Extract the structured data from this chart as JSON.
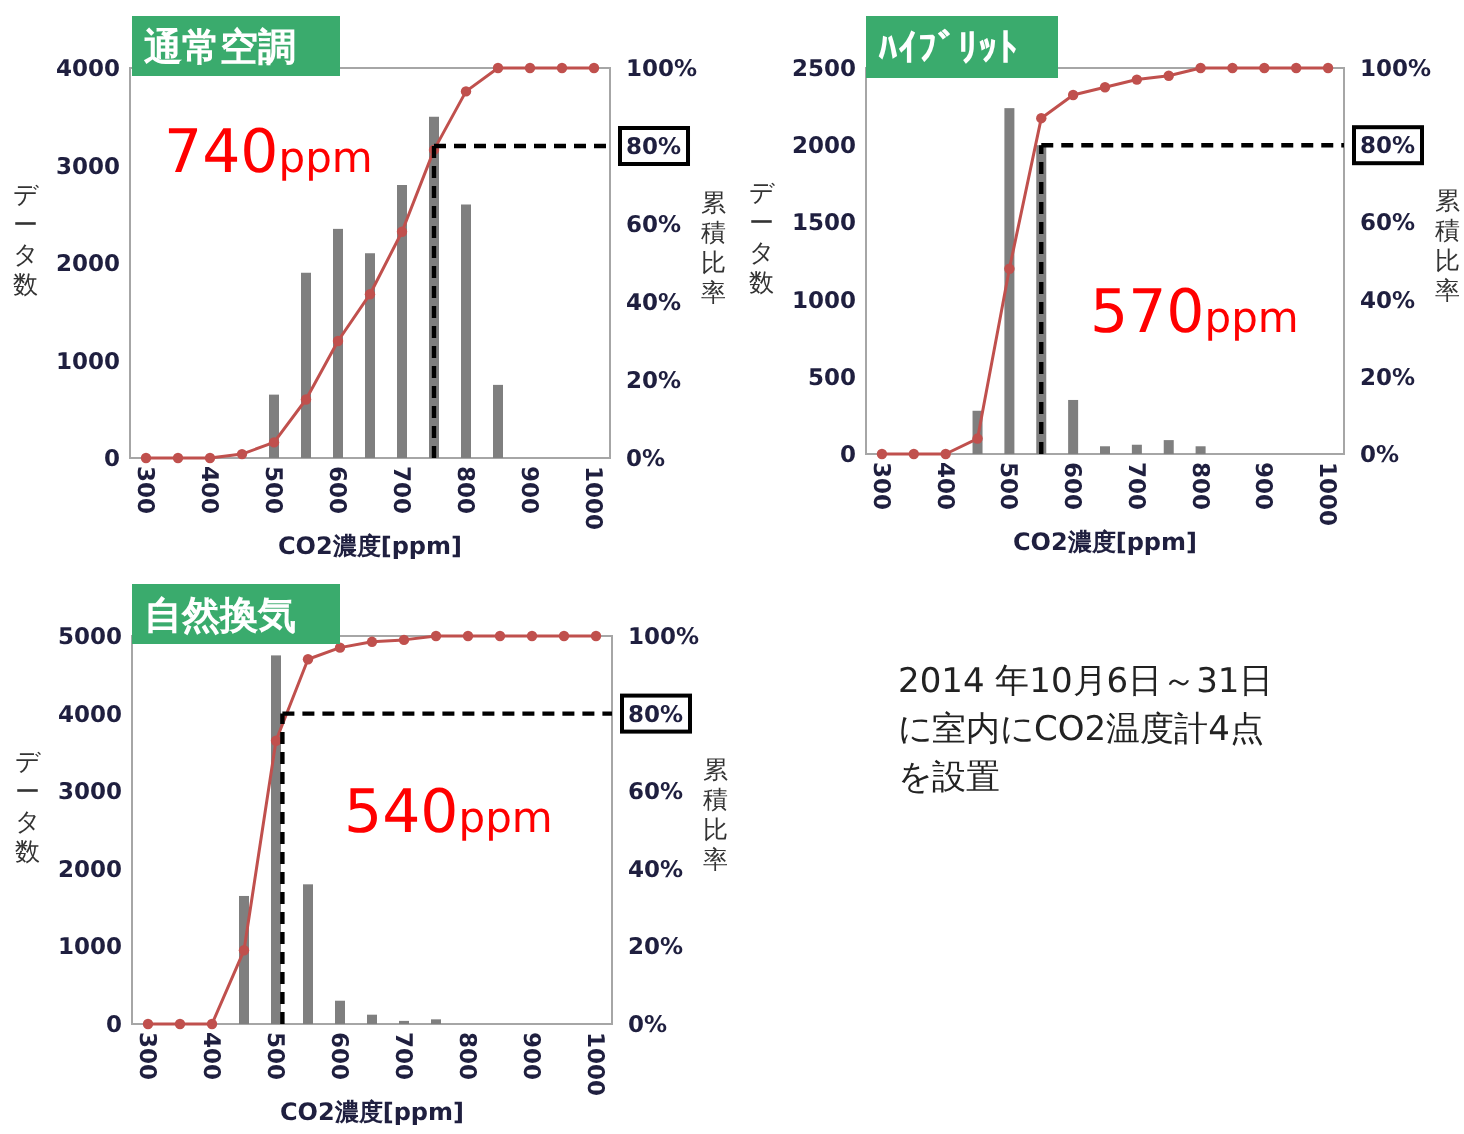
{
  "chart_data": [
    {
      "type": "bar",
      "title": "通常空調",
      "xlabel": "CO2濃度[ppm]",
      "ylabel": "データ数",
      "y2label": "累積比率",
      "xlim": [
        275,
        1025
      ],
      "xticks": [
        300,
        400,
        500,
        600,
        700,
        800,
        900,
        1000
      ],
      "ylim": [
        0,
        4000
      ],
      "yticks": [
        0,
        1000,
        2000,
        3000,
        4000
      ],
      "y2lim": [
        0,
        100
      ],
      "y2ticks": [
        {
          "value": 0,
          "label": "0%"
        },
        {
          "value": 20,
          "label": "20%"
        },
        {
          "value": 40,
          "label": "40%"
        },
        {
          "value": 60,
          "label": "60%"
        },
        {
          "value": 80,
          "label": "80%"
        },
        {
          "value": 100,
          "label": "100%"
        }
      ],
      "grid": false,
      "marker": "circle",
      "series": [
        {
          "type": "bar",
          "color": "#7f7f7f",
          "x": [
            500,
            550,
            600,
            650,
            700,
            750,
            800,
            850
          ],
          "values": [
            650,
            1900,
            2350,
            2100,
            2800,
            3500,
            2600,
            750
          ]
        },
        {
          "type": "line",
          "axis": "y2",
          "color": "#c0504d",
          "x": [
            300,
            350,
            400,
            450,
            500,
            550,
            600,
            650,
            700,
            750,
            800,
            850,
            900,
            950,
            1000
          ],
          "values": [
            0,
            0,
            0,
            1,
            4,
            15,
            30,
            42,
            58,
            79,
            94,
            100,
            100,
            100,
            100
          ]
        }
      ],
      "ref_lines": [
        {
          "axis": "x",
          "value": 750,
          "color": "#000000",
          "line_style": "dashed"
        },
        {
          "axis": "y2",
          "value": 80,
          "color": "#000000",
          "line_style": "dashed"
        }
      ],
      "annotations": [
        "740ppm"
      ]
    },
    {
      "type": "bar",
      "title": "ﾊｲﾌﾞﾘｯﾄ",
      "xlabel": "CO2濃度[ppm]",
      "ylabel": "データ数",
      "y2label": "累積比率",
      "xlim": [
        275,
        1025
      ],
      "xticks": [
        300,
        400,
        500,
        600,
        700,
        800,
        900,
        1000
      ],
      "ylim": [
        0,
        2500
      ],
      "yticks": [
        0,
        500,
        1000,
        1500,
        2000,
        2500
      ],
      "y2lim": [
        0,
        100
      ],
      "y2ticks": [
        {
          "value": 0,
          "label": "0%"
        },
        {
          "value": 20,
          "label": "20%"
        },
        {
          "value": 40,
          "label": "40%"
        },
        {
          "value": 60,
          "label": "60%"
        },
        {
          "value": 80,
          "label": "80%"
        },
        {
          "value": 100,
          "label": "100%"
        }
      ],
      "grid": false,
      "marker": "circle",
      "series": [
        {
          "type": "bar",
          "color": "#7f7f7f",
          "x": [
            450,
            500,
            550,
            600,
            650,
            700,
            750,
            800
          ],
          "values": [
            280,
            2240,
            2000,
            350,
            50,
            60,
            90,
            50
          ]
        },
        {
          "type": "line",
          "axis": "y2",
          "color": "#c0504d",
          "x": [
            300,
            350,
            400,
            450,
            500,
            550,
            600,
            650,
            700,
            750,
            800,
            850,
            900,
            950,
            1000
          ],
          "values": [
            0,
            0,
            0,
            4,
            48,
            87,
            93,
            95,
            97,
            98,
            100,
            100,
            100,
            100,
            100
          ]
        }
      ],
      "ref_lines": [
        {
          "axis": "x",
          "value": 550,
          "color": "#000000",
          "line_style": "dashed"
        },
        {
          "axis": "y2",
          "value": 80,
          "color": "#000000",
          "line_style": "dashed"
        }
      ],
      "annotations": [
        "570ppm"
      ]
    },
    {
      "type": "bar",
      "title": "自然換気",
      "xlabel": "CO2濃度[ppm]",
      "ylabel": "データ数",
      "y2label": "累積比率",
      "xlim": [
        275,
        1025
      ],
      "xticks": [
        300,
        400,
        500,
        600,
        700,
        800,
        900,
        1000
      ],
      "ylim": [
        0,
        5000
      ],
      "yticks": [
        0,
        1000,
        2000,
        3000,
        4000,
        5000
      ],
      "y2lim": [
        0,
        100
      ],
      "y2ticks": [
        {
          "value": 0,
          "label": "0%"
        },
        {
          "value": 20,
          "label": "20%"
        },
        {
          "value": 40,
          "label": "40%"
        },
        {
          "value": 60,
          "label": "60%"
        },
        {
          "value": 80,
          "label": "80%"
        },
        {
          "value": 100,
          "label": "100%"
        }
      ],
      "grid": false,
      "marker": "circle",
      "series": [
        {
          "type": "bar",
          "color": "#7f7f7f",
          "x": [
            450,
            500,
            550,
            600,
            650,
            700,
            750
          ],
          "values": [
            1650,
            4750,
            1800,
            300,
            120,
            40,
            60
          ]
        },
        {
          "type": "line",
          "axis": "y2",
          "color": "#c0504d",
          "x": [
            300,
            350,
            400,
            450,
            500,
            550,
            600,
            650,
            700,
            750,
            800,
            850,
            900,
            950,
            1000
          ],
          "values": [
            0,
            0,
            0,
            19,
            73,
            94,
            97,
            98.5,
            99,
            100,
            100,
            100,
            100,
            100,
            100
          ]
        }
      ],
      "ref_lines": [
        {
          "axis": "x",
          "value": 510,
          "color": "#000000",
          "line_style": "dashed"
        },
        {
          "axis": "y2",
          "value": 80,
          "color": "#000000",
          "line_style": "dashed"
        }
      ],
      "annotations": [
        "540ppm"
      ]
    },
    {
      "type": "other",
      "annotations": [
        "2014 年10月6日～31日",
        "に室内にCO2温度計4点",
        "を設置"
      ]
    }
  ]
}
